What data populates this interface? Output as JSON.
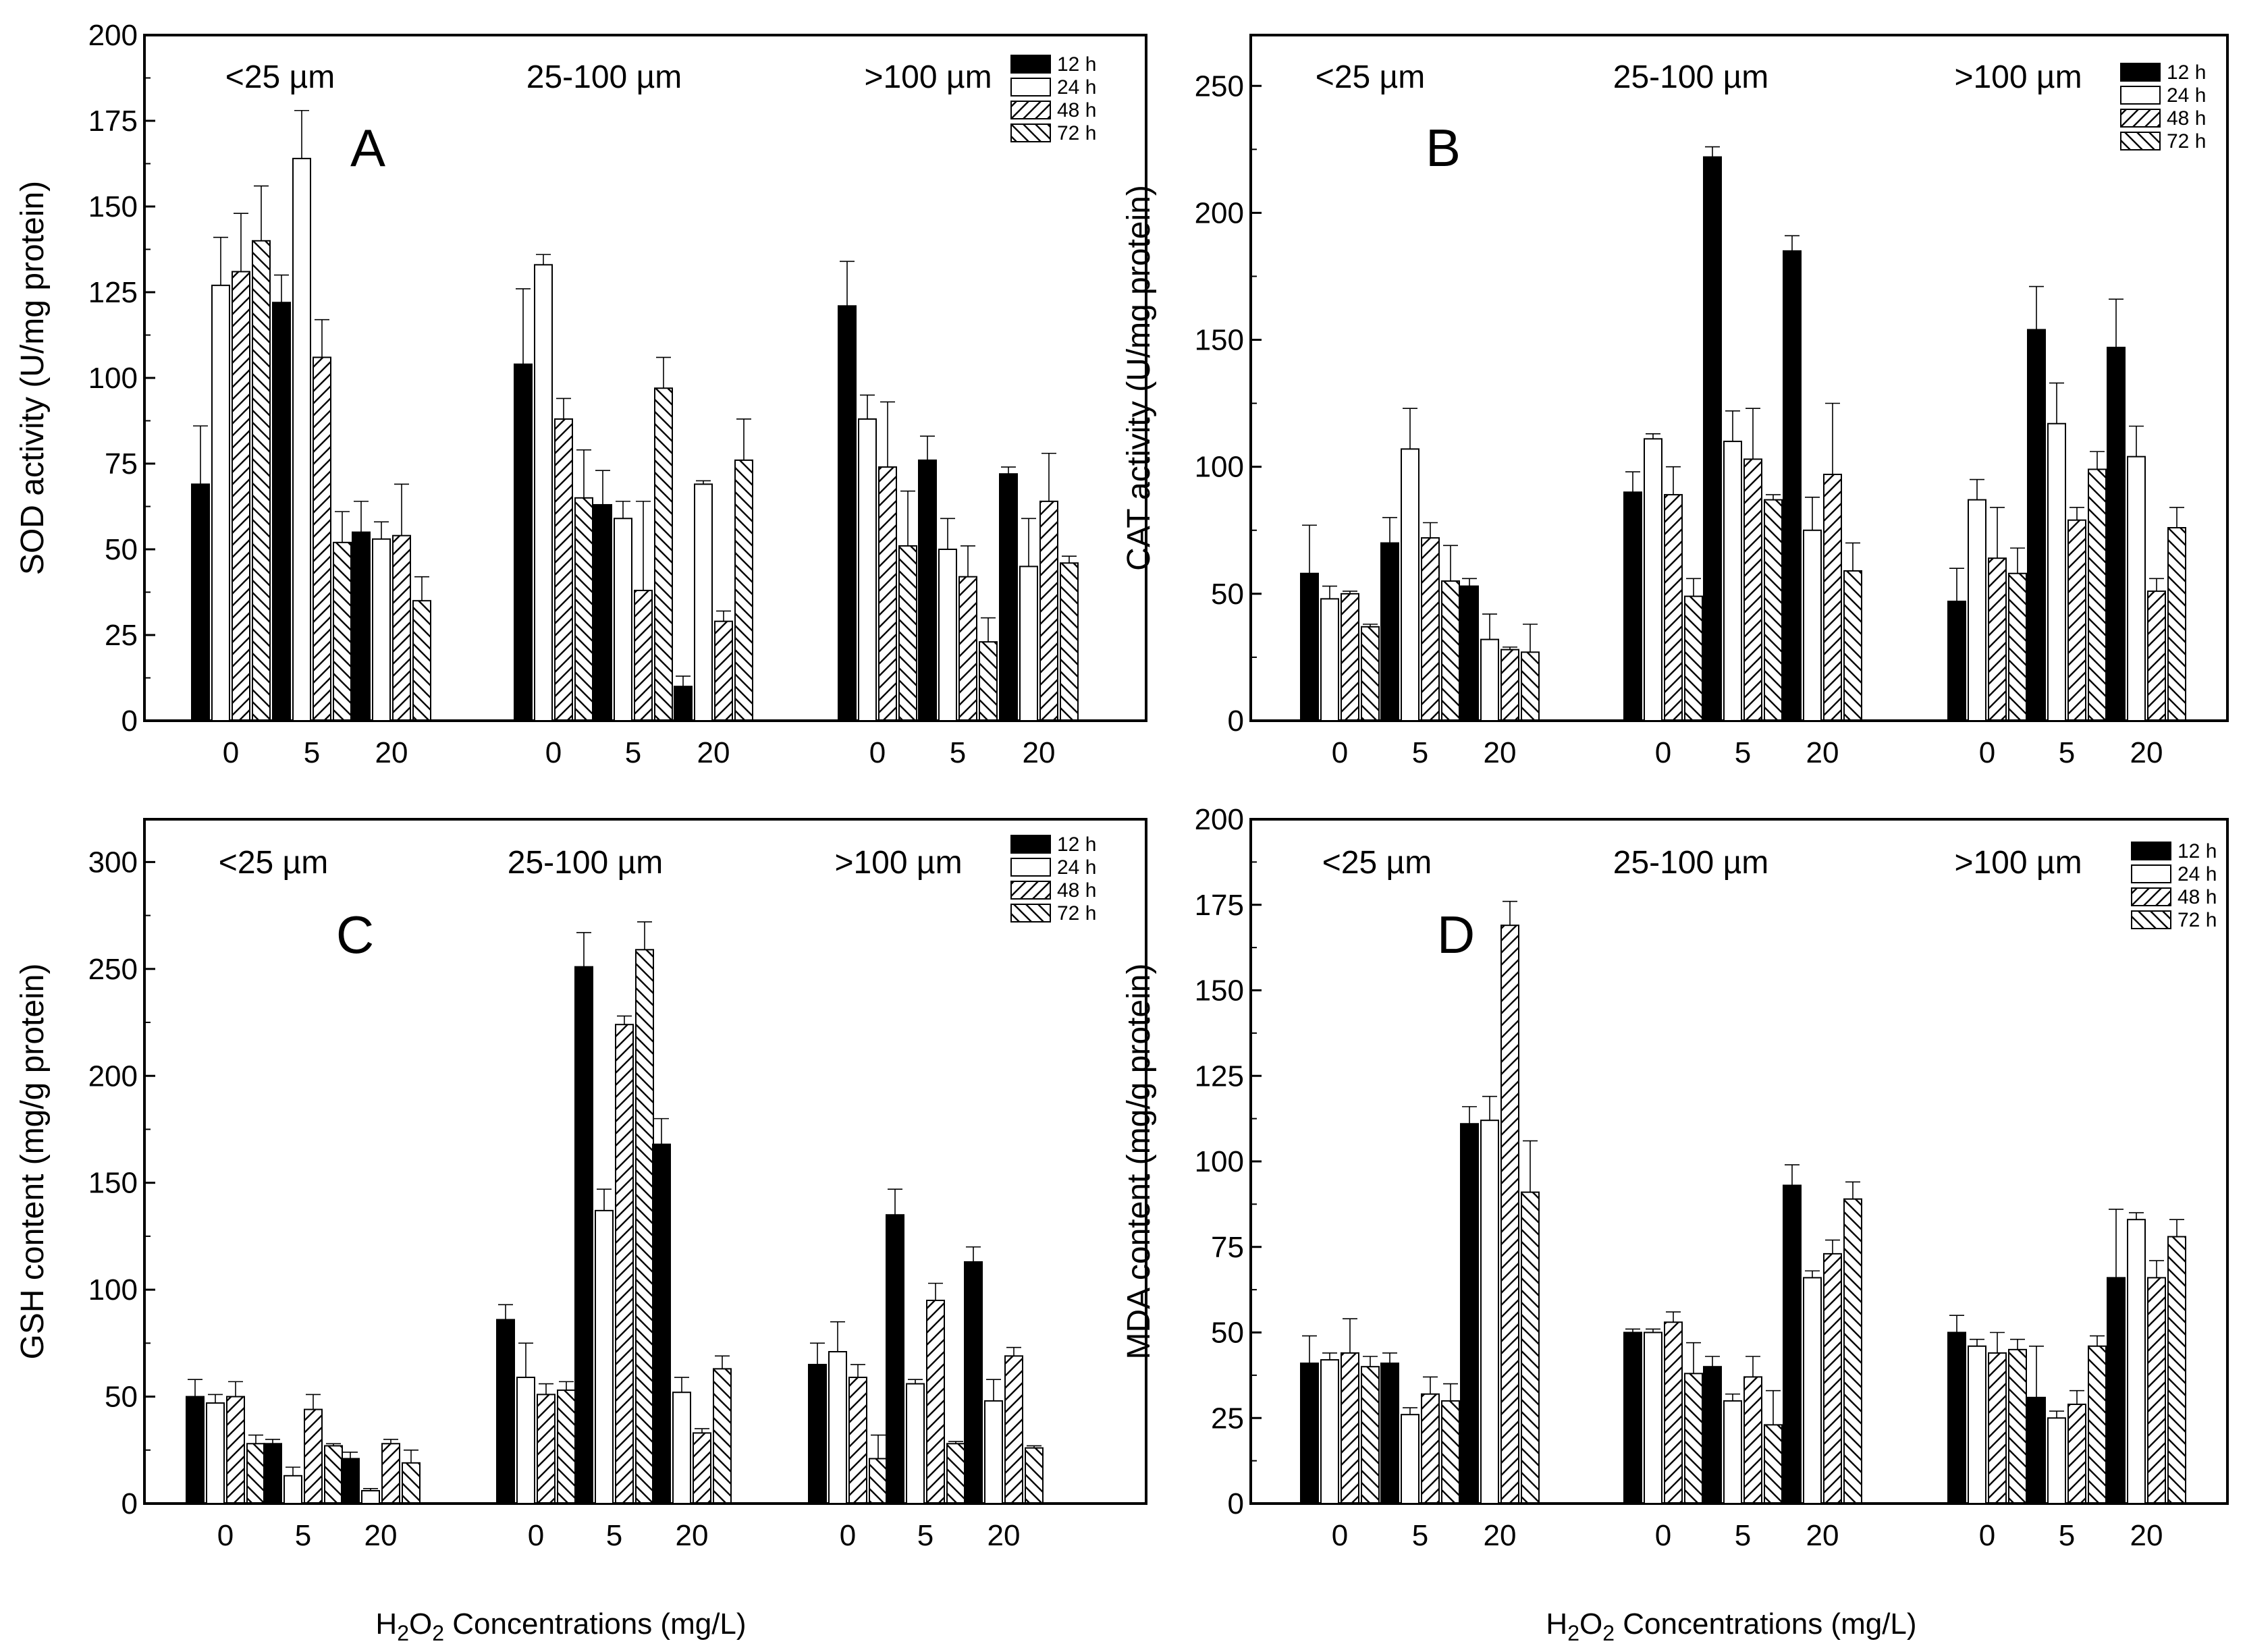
{
  "chart_data": [
    {
      "type": "bar",
      "panel_label": "A",
      "ylabel": "SOD activity (U/mg protein)",
      "ylim": [
        0,
        200
      ],
      "yticks": [
        0,
        25,
        50,
        75,
        100,
        125,
        150,
        175,
        200
      ],
      "groups": [
        "<25 µm",
        "25-100 µm",
        ">100 µm"
      ],
      "categories": [
        "0",
        "5",
        "20"
      ],
      "legend": [
        "12 h",
        "24 h",
        "48 h",
        "72 h"
      ],
      "legend_position": "top-right",
      "series": [
        {
          "name": "12 h",
          "values": [
            [
              69,
              122,
              55
            ],
            [
              104,
              63,
              10
            ],
            [
              121,
              76,
              72
            ]
          ],
          "errors": [
            [
              17,
              8,
              9
            ],
            [
              22,
              10,
              3
            ],
            [
              13,
              7,
              2
            ]
          ]
        },
        {
          "name": "24 h",
          "values": [
            [
              127,
              164,
              53
            ],
            [
              133,
              59,
              69
            ],
            [
              88,
              50,
              45
            ]
          ],
          "errors": [
            [
              14,
              14,
              5
            ],
            [
              3,
              5,
              1
            ],
            [
              7,
              9,
              14
            ]
          ]
        },
        {
          "name": "48 h",
          "values": [
            [
              131,
              106,
              54
            ],
            [
              88,
              38,
              29
            ],
            [
              74,
              42,
              64
            ]
          ],
          "errors": [
            [
              17,
              11,
              15
            ],
            [
              6,
              26,
              3
            ],
            [
              19,
              9,
              14
            ]
          ]
        },
        {
          "name": "72 h",
          "values": [
            [
              140,
              52,
              35
            ],
            [
              65,
              97,
              76
            ],
            [
              51,
              23,
              46
            ]
          ],
          "errors": [
            [
              16,
              9,
              7
            ],
            [
              14,
              9,
              12
            ],
            [
              16,
              7,
              2
            ]
          ]
        }
      ]
    },
    {
      "type": "bar",
      "panel_label": "B",
      "ylabel": "CAT activity (U/mg protein)",
      "ylim": [
        0,
        270
      ],
      "yticks": [
        0,
        50,
        100,
        150,
        200,
        250
      ],
      "groups": [
        "<25 µm",
        "25-100 µm",
        ">100 µm"
      ],
      "categories": [
        "0",
        "5",
        "20"
      ],
      "legend": [
        "12 h",
        "24 h",
        "48 h",
        "72 h"
      ],
      "legend_position": "top-right",
      "series": [
        {
          "name": "12 h",
          "values": [
            [
              58,
              70,
              53
            ],
            [
              90,
              222,
              185
            ],
            [
              47,
              154,
              147
            ]
          ],
          "errors": [
            [
              19,
              10,
              3
            ],
            [
              8,
              4,
              6
            ],
            [
              13,
              17,
              19
            ]
          ]
        },
        {
          "name": "24 h",
          "values": [
            [
              48,
              107,
              32
            ],
            [
              111,
              110,
              75
            ],
            [
              87,
              117,
              104
            ]
          ],
          "errors": [
            [
              5,
              16,
              10
            ],
            [
              2,
              12,
              13
            ],
            [
              8,
              16,
              12
            ]
          ]
        },
        {
          "name": "48 h",
          "values": [
            [
              50,
              72,
              28
            ],
            [
              89,
              103,
              97
            ],
            [
              64,
              79,
              51
            ]
          ],
          "errors": [
            [
              1,
              6,
              1
            ],
            [
              11,
              20,
              28
            ],
            [
              20,
              5,
              5
            ]
          ]
        },
        {
          "name": "72 h",
          "values": [
            [
              37,
              55,
              27
            ],
            [
              49,
              87,
              59
            ],
            [
              58,
              99,
              76
            ]
          ],
          "errors": [
            [
              1,
              14,
              11
            ],
            [
              7,
              2,
              11
            ],
            [
              10,
              7,
              8
            ]
          ]
        }
      ]
    },
    {
      "type": "bar",
      "panel_label": "C",
      "ylabel": "GSH content (mg/g protein)",
      "ylim": [
        0,
        320
      ],
      "yticks": [
        0,
        50,
        100,
        150,
        200,
        250,
        300
      ],
      "groups": [
        "<25 µm",
        "25-100 µm",
        ">100 µm"
      ],
      "categories": [
        "0",
        "5",
        "20"
      ],
      "legend": [
        "12 h",
        "24 h",
        "48 h",
        "72 h"
      ],
      "legend_position": "top-right",
      "series": [
        {
          "name": "12 h",
          "values": [
            [
              50,
              28,
              21
            ],
            [
              86,
              251,
              168
            ],
            [
              65,
              135,
              113
            ]
          ],
          "errors": [
            [
              8,
              2,
              3
            ],
            [
              7,
              16,
              12
            ],
            [
              10,
              12,
              7
            ]
          ]
        },
        {
          "name": "24 h",
          "values": [
            [
              47,
              13,
              6
            ],
            [
              59,
              137,
              52
            ],
            [
              71,
              56,
              48
            ]
          ],
          "errors": [
            [
              4,
              4,
              1
            ],
            [
              16,
              10,
              7
            ],
            [
              14,
              2,
              10
            ]
          ]
        },
        {
          "name": "48 h",
          "values": [
            [
              50,
              44,
              28
            ],
            [
              51,
              224,
              33
            ],
            [
              59,
              95,
              69
            ]
          ],
          "errors": [
            [
              7,
              7,
              2
            ],
            [
              5,
              4,
              2
            ],
            [
              6,
              8,
              4
            ]
          ]
        },
        {
          "name": "72 h",
          "values": [
            [
              28,
              27,
              19
            ],
            [
              53,
              259,
              63
            ],
            [
              21,
              28,
              26
            ]
          ],
          "errors": [
            [
              4,
              1,
              6
            ],
            [
              4,
              13,
              6
            ],
            [
              11,
              1,
              1
            ]
          ]
        }
      ]
    },
    {
      "type": "bar",
      "panel_label": "D",
      "ylabel": "MDA content (mg/g protein)",
      "ylim": [
        0,
        200
      ],
      "yticks": [
        0,
        25,
        50,
        75,
        100,
        125,
        150,
        175,
        200
      ],
      "groups": [
        "<25 µm",
        "25-100 µm",
        ">100 µm"
      ],
      "categories": [
        "0",
        "5",
        "20"
      ],
      "legend": [
        "12 h",
        "24 h",
        "48 h",
        "72 h"
      ],
      "legend_position": "top-right",
      "series": [
        {
          "name": "12 h",
          "values": [
            [
              41,
              41,
              111
            ],
            [
              50,
              40,
              93
            ],
            [
              50,
              31,
              66
            ]
          ],
          "errors": [
            [
              8,
              3,
              5
            ],
            [
              1,
              3,
              6
            ],
            [
              5,
              15,
              20
            ]
          ]
        },
        {
          "name": "24 h",
          "values": [
            [
              42,
              26,
              112
            ],
            [
              50,
              30,
              66
            ],
            [
              46,
              25,
              83
            ]
          ],
          "errors": [
            [
              2,
              2,
              7
            ],
            [
              1,
              2,
              2
            ],
            [
              2,
              2,
              2
            ]
          ]
        },
        {
          "name": "48 h",
          "values": [
            [
              44,
              32,
              169
            ],
            [
              53,
              37,
              73
            ],
            [
              44,
              29,
              66
            ]
          ],
          "errors": [
            [
              10,
              5,
              7
            ],
            [
              3,
              6,
              4
            ],
            [
              6,
              4,
              5
            ]
          ]
        },
        {
          "name": "72 h",
          "values": [
            [
              40,
              30,
              91
            ],
            [
              38,
              23,
              89
            ],
            [
              45,
              46,
              78
            ]
          ],
          "errors": [
            [
              3,
              5,
              15
            ],
            [
              9,
              10,
              5
            ],
            [
              3,
              3,
              5
            ]
          ]
        }
      ]
    }
  ],
  "xlabel": "H2O2 Concentrations (mg/L)",
  "xlabel_parts": {
    "pre": "H",
    "sub1": "2",
    "mid": "O",
    "sub2": "2",
    "post": " Concentrations (mg/L)"
  }
}
